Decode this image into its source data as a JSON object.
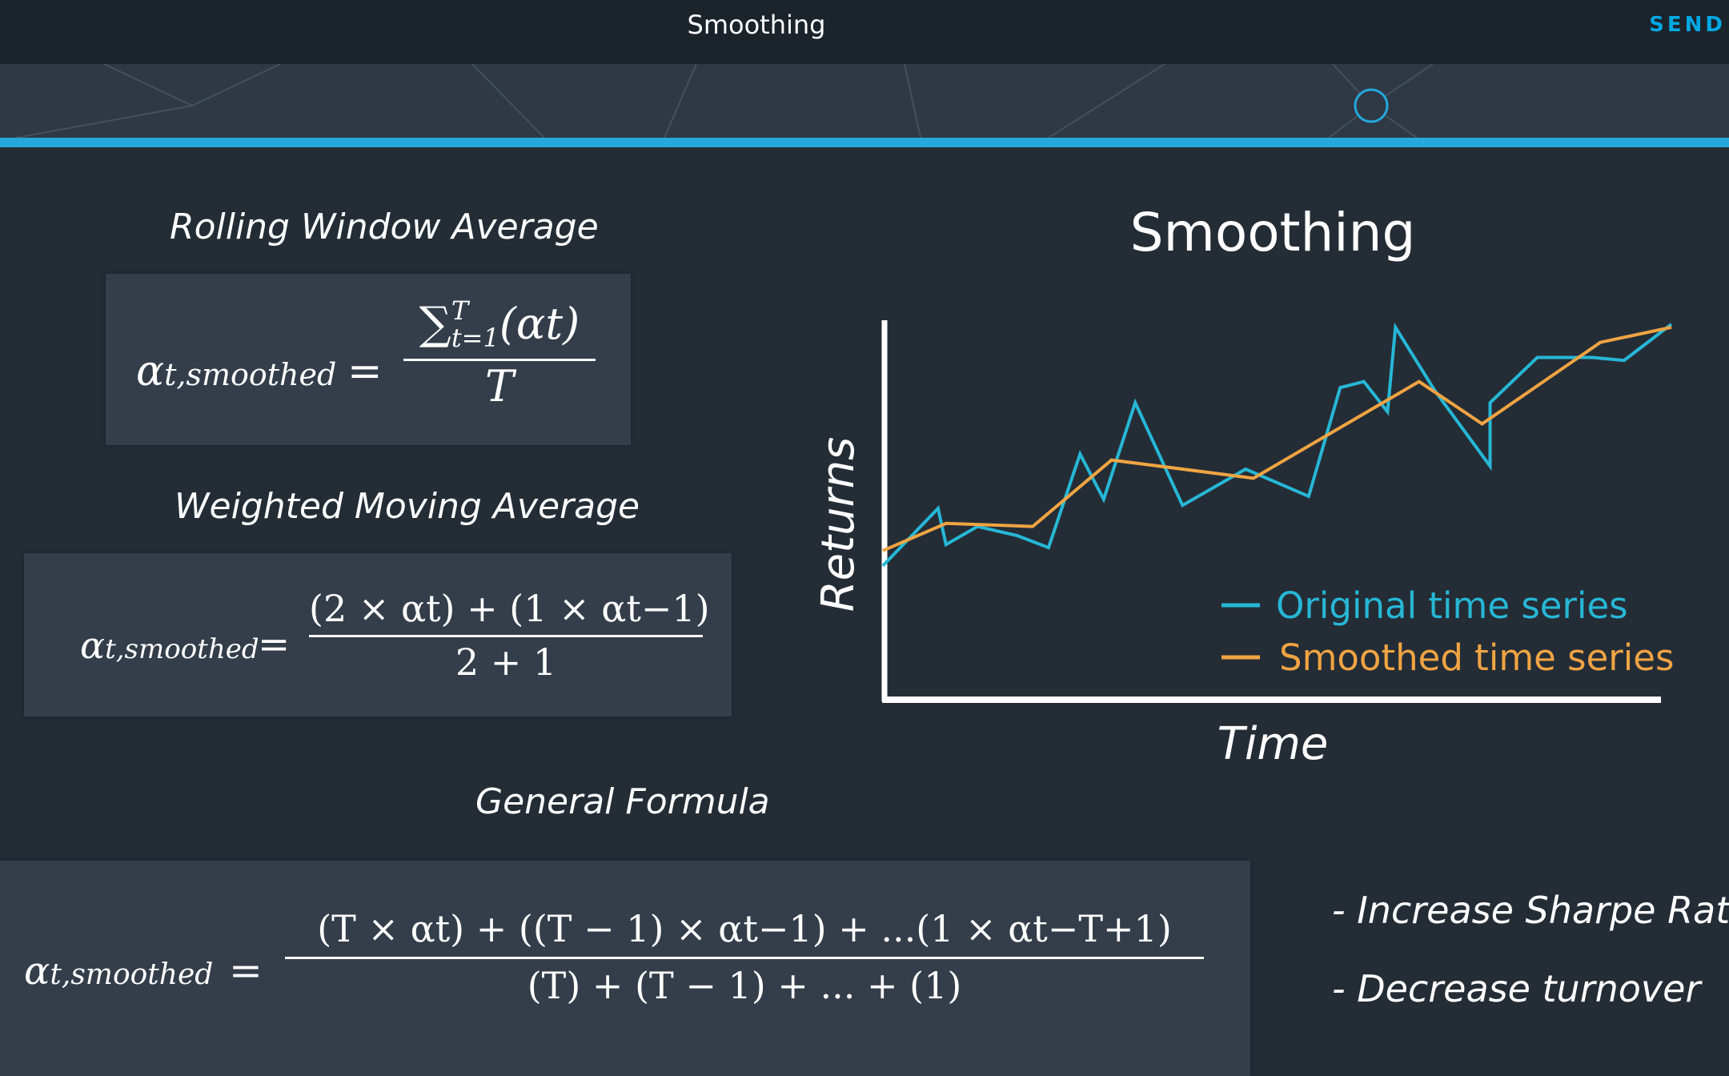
{
  "topbar": {
    "title": "Smoothing",
    "send_label": "SEND"
  },
  "colors": {
    "accent": "#25a8dc",
    "original_series": "#27b7d6",
    "smoothed_series": "#f0a443"
  },
  "slide": {
    "rolling": {
      "heading": "Rolling Window Average",
      "lhs": "α",
      "lhs_sub": "t,smoothed",
      "eq": "=",
      "numerator": "∑",
      "numerator_sup": "T",
      "numerator_sub": "t=1",
      "numerator_rest": "(αt)",
      "denominator": "T"
    },
    "weighted": {
      "heading": "Weighted Moving Average",
      "lhs": "α",
      "lhs_sub": "t,smoothed",
      "eq": "=",
      "numerator": "(2 × αt) + (1 × αt−1)",
      "denominator": "2 + 1"
    },
    "general": {
      "heading": "General Formula",
      "lhs": "α",
      "lhs_sub": "t,smoothed",
      "eq": "=",
      "numerator": "(T × αt) + ((T − 1) × αt−1) + ...(1 × αt−T+1)",
      "denominator": "(T) + (T − 1) + ... + (1)"
    },
    "bullets": [
      "- Increase Sharpe Ratio",
      "- Decrease turnover"
    ]
  },
  "chart_data": {
    "type": "line",
    "title": "Smoothing",
    "xlabel": "Time",
    "ylabel": "Returns",
    "xlim": [
      0,
      100
    ],
    "ylim": [
      0,
      100
    ],
    "grid": false,
    "legend_placement": "bottom-right",
    "series": [
      {
        "name": "Original time series",
        "color": "#27b7d6",
        "points": [
          [
            0,
            20
          ],
          [
            7,
            39
          ],
          [
            8,
            27
          ],
          [
            12,
            33
          ],
          [
            17,
            30
          ],
          [
            21,
            26
          ],
          [
            25,
            57
          ],
          [
            28,
            42
          ],
          [
            32,
            74
          ],
          [
            38,
            40
          ],
          [
            46,
            52
          ],
          [
            54,
            43
          ],
          [
            58,
            79
          ],
          [
            61,
            81
          ],
          [
            64,
            71
          ],
          [
            65,
            99
          ],
          [
            70,
            78
          ],
          [
            77,
            53
          ],
          [
            77,
            74
          ],
          [
            83,
            89
          ],
          [
            90,
            89
          ],
          [
            94,
            88
          ],
          [
            100,
            100
          ]
        ]
      },
      {
        "name": "Smoothed time series",
        "color": "#f0a443",
        "points": [
          [
            0,
            25
          ],
          [
            8,
            34
          ],
          [
            19,
            33
          ],
          [
            29,
            55
          ],
          [
            47,
            49
          ],
          [
            68,
            81
          ],
          [
            76,
            67
          ],
          [
            91,
            94
          ],
          [
            100,
            99
          ]
        ]
      }
    ]
  }
}
